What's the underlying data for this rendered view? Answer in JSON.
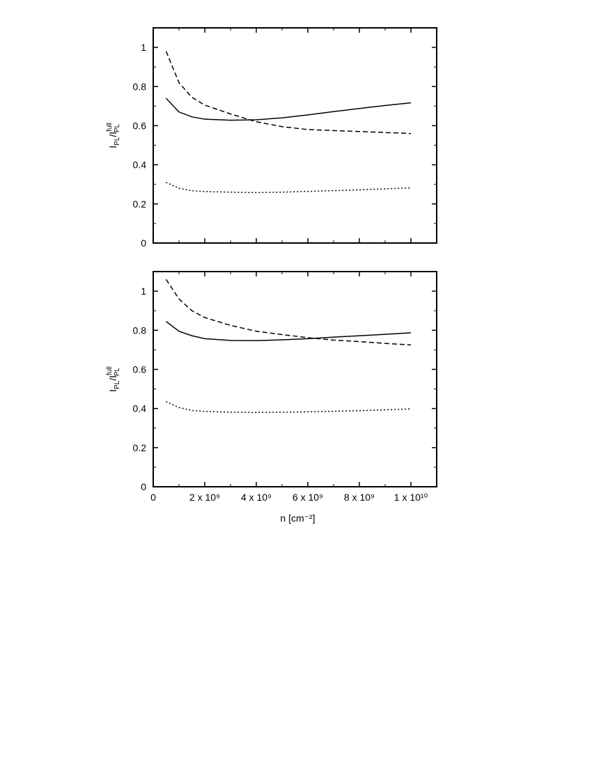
{
  "chart_data": [
    {
      "type": "line",
      "ylabel": [
        "I",
        "PL",
        "/I",
        "full",
        "PL"
      ],
      "x": [
        500000000.0,
        1000000000.0,
        1500000000.0,
        2000000000.0,
        3000000000.0,
        4000000000.0,
        5000000000.0,
        6000000000.0,
        7000000000.0,
        8000000000.0,
        9000000000.0,
        10000000000.0
      ],
      "series": [
        {
          "style": "solid",
          "color": "#000000",
          "values": [
            0.74,
            0.67,
            0.645,
            0.633,
            0.628,
            0.63,
            0.64,
            0.655,
            0.672,
            0.688,
            0.703,
            0.717
          ]
        },
        {
          "style": "dashed",
          "color": "#000000",
          "values": [
            0.98,
            0.82,
            0.745,
            0.705,
            0.66,
            0.62,
            0.595,
            0.58,
            0.575,
            0.57,
            0.565,
            0.56
          ]
        },
        {
          "style": "dotted",
          "color": "#000000",
          "values": [
            0.31,
            0.28,
            0.267,
            0.263,
            0.26,
            0.258,
            0.26,
            0.264,
            0.268,
            0.272,
            0.277,
            0.282
          ]
        }
      ],
      "xlim": [
        0,
        11000000000.0
      ],
      "xticks": [
        0,
        2000000000.0,
        4000000000.0,
        6000000000.0,
        8000000000.0,
        10000000000.0
      ],
      "ylim": [
        0,
        1.1
      ],
      "yticks": [
        0,
        0.2,
        0.4,
        0.6,
        0.8,
        1
      ]
    },
    {
      "type": "line",
      "ylabel": [
        "I",
        "PL",
        "/I",
        "full",
        "PL"
      ],
      "xlabel": "n [cm⁻²]",
      "x": [
        500000000.0,
        1000000000.0,
        1500000000.0,
        2000000000.0,
        3000000000.0,
        4000000000.0,
        5000000000.0,
        6000000000.0,
        7000000000.0,
        8000000000.0,
        9000000000.0,
        10000000000.0
      ],
      "series": [
        {
          "style": "solid",
          "color": "#000000",
          "values": [
            0.845,
            0.795,
            0.772,
            0.757,
            0.748,
            0.747,
            0.751,
            0.757,
            0.765,
            0.772,
            0.779,
            0.787
          ]
        },
        {
          "style": "dashed",
          "color": "#000000",
          "values": [
            1.06,
            0.96,
            0.9,
            0.865,
            0.825,
            0.795,
            0.778,
            0.762,
            0.75,
            0.742,
            0.733,
            0.725
          ]
        },
        {
          "style": "dotted",
          "color": "#000000",
          "values": [
            0.435,
            0.405,
            0.39,
            0.385,
            0.381,
            0.38,
            0.381,
            0.383,
            0.386,
            0.389,
            0.393,
            0.398
          ]
        }
      ],
      "xlim": [
        0,
        11000000000.0
      ],
      "xticks": [
        0,
        {
          "value": 2000000000.0,
          "label": "2 x 10⁹"
        },
        {
          "value": 4000000000.0,
          "label": "4 x 10⁹"
        },
        {
          "value": 6000000000.0,
          "label": "6 x 10⁹"
        },
        {
          "value": 8000000000.0,
          "label": "8 x 10⁹"
        },
        {
          "value": 10000000000.0,
          "label": "1 x 10¹⁰"
        }
      ],
      "ylim": [
        0,
        1.1
      ],
      "yticks": [
        0,
        0.2,
        0.4,
        0.6,
        0.8,
        1
      ]
    }
  ]
}
